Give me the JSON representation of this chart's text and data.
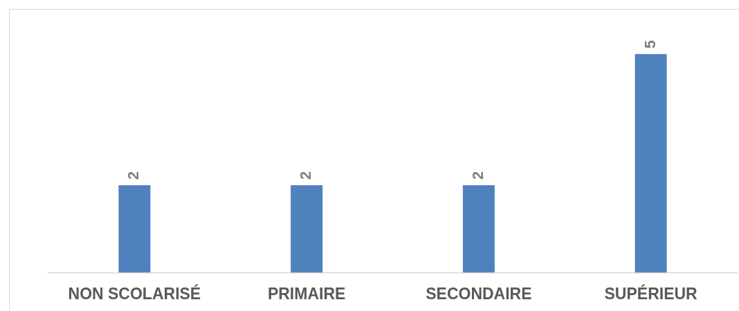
{
  "chart_data": {
    "type": "bar",
    "categories": [
      "NON SCOLARISÉ",
      "PRIMAIRE",
      "SECONDAIRE",
      "SUPÉRIEUR"
    ],
    "values": [
      2,
      2,
      2,
      5
    ],
    "color": "#4f81bd",
    "ylim": [
      0,
      6
    ],
    "data_labels": true,
    "grid": false,
    "legend": false
  }
}
